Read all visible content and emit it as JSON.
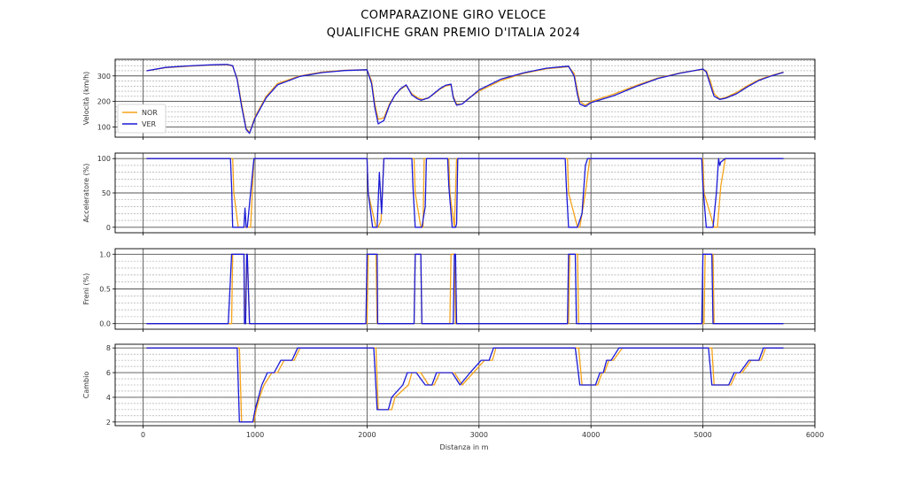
{
  "header": {
    "title_line1": "COMPARAZIONE GIRO VELOCE",
    "title_line2": "QUALIFICHE GRAN PREMIO D'ITALIA 2024"
  },
  "colors": {
    "NOR": "#f5a31a",
    "VER": "#1a1ad6",
    "grid_major": "#555555",
    "grid_minor": "#9a9a9a"
  },
  "chart_data": {
    "type": "line",
    "xlabel": "Distanza in m",
    "xlim": [
      -250,
      6000
    ],
    "xticks": [
      0,
      1000,
      2000,
      3000,
      4000,
      5000,
      6000
    ],
    "legend": {
      "placement": "lower-left",
      "entries": [
        "NOR",
        "VER"
      ]
    },
    "grid": true,
    "panels": [
      {
        "id": "speed",
        "ylabel": "Velocità (km/h)",
        "ylim": [
          60,
          365
        ],
        "yticks": [
          100,
          200,
          300
        ],
        "series": [
          {
            "name": "NOR",
            "x": [
              30,
              200,
              400,
              600,
              750,
              800,
              840,
              880,
              920,
              950,
              1000,
              1100,
              1200,
              1400,
              1600,
              1800,
              2000,
              2040,
              2070,
              2100,
              2150,
              2200,
              2250,
              2300,
              2350,
              2400,
              2450,
              2480,
              2500,
              2550,
              2600,
              2650,
              2700,
              2750,
              2770,
              2800,
              2850,
              2900,
              3000,
              3200,
              3400,
              3600,
              3800,
              3850,
              3880,
              3900,
              3950,
              4000,
              4200,
              4400,
              4600,
              4800,
              5000,
              5030,
              5070,
              5100,
              5150,
              5200,
              5300,
              5400,
              5500,
              5600,
              5720
            ],
            "y": [
              320,
              332,
              338,
              342,
              344,
              338,
              290,
              190,
              95,
              78,
              140,
              220,
              270,
              300,
              315,
              322,
              324,
              280,
              190,
              130,
              135,
              190,
              225,
              248,
              262,
              230,
              215,
              210,
              208,
              215,
              230,
              248,
              260,
              265,
              220,
              190,
              190,
              210,
              240,
              283,
              310,
              328,
              336,
              310,
              240,
              200,
              185,
              200,
              228,
              262,
              292,
              312,
              326,
              320,
              275,
              230,
              210,
              215,
              235,
              262,
              285,
              300,
              315
            ]
          },
          {
            "name": "VER",
            "x": [
              30,
              200,
              400,
              600,
              750,
              800,
              840,
              880,
              920,
              950,
              1000,
              1100,
              1200,
              1400,
              1600,
              1800,
              2000,
              2040,
              2070,
              2100,
              2150,
              2200,
              2250,
              2300,
              2350,
              2400,
              2450,
              2480,
              2500,
              2550,
              2600,
              2650,
              2700,
              2750,
              2770,
              2800,
              2850,
              2900,
              3000,
              3200,
              3400,
              3600,
              3800,
              3850,
              3880,
              3900,
              3950,
              4000,
              4200,
              4400,
              4600,
              4800,
              5000,
              5030,
              5070,
              5100,
              5150,
              5200,
              5300,
              5400,
              5500,
              5600,
              5720
            ],
            "y": [
              320,
              333,
              339,
              343,
              345,
              340,
              285,
              180,
              90,
              75,
              135,
              215,
              265,
              298,
              313,
              321,
              324,
              270,
              175,
              112,
              125,
              185,
              225,
              250,
              265,
              225,
              210,
              205,
              207,
              214,
              232,
              250,
              263,
              268,
              215,
              185,
              190,
              208,
              245,
              288,
              312,
              330,
              338,
              300,
              225,
              190,
              180,
              195,
              222,
              258,
              290,
              311,
              327,
              315,
              260,
              220,
              208,
              212,
              230,
              258,
              282,
              298,
              314
            ]
          }
        ]
      },
      {
        "id": "throttle",
        "ylabel": "Acceleratore (%)",
        "ylim": [
          -8,
          108
        ],
        "yticks": [
          0,
          50,
          100
        ],
        "series": [
          {
            "name": "NOR",
            "x": [
              30,
              800,
              810,
              850,
              880,
              960,
              990,
              2000,
              2010,
              2080,
              2100,
              2125,
              2150,
              2420,
              2430,
              2480,
              2500,
              2510,
              2730,
              2740,
              2780,
              2800,
              3790,
              3800,
              3880,
              3900,
              3950,
              3990,
              5000,
              5010,
              5100,
              5130,
              5160,
              5200,
              5720
            ],
            "y": [
              100,
              100,
              50,
              0,
              0,
              0,
              100,
              100,
              50,
              0,
              0,
              10,
              100,
              100,
              50,
              0,
              0,
              100,
              100,
              50,
              0,
              100,
              100,
              50,
              0,
              0,
              50,
              100,
              100,
              50,
              0,
              0,
              60,
              100,
              100
            ]
          },
          {
            "name": "VER",
            "x": [
              30,
              780,
              790,
              800,
              820,
              900,
              910,
              920,
              930,
              960,
              990,
              2000,
              2010,
              2050,
              2090,
              2110,
              2130,
              2150,
              2400,
              2410,
              2430,
              2490,
              2520,
              2530,
              2720,
              2730,
              2760,
              2790,
              2800,
              2810,
              3770,
              3780,
              3800,
              3880,
              3920,
              3950,
              3970,
              4000,
              4990,
              5000,
              5030,
              5090,
              5120,
              5140,
              5150,
              5160,
              5200,
              5720
            ],
            "y": [
              100,
              100,
              60,
              0,
              0,
              0,
              28,
              0,
              0,
              50,
              100,
              100,
              50,
              0,
              0,
              80,
              20,
              100,
              100,
              60,
              0,
              0,
              30,
              100,
              100,
              60,
              0,
              0,
              5,
              100,
              100,
              60,
              0,
              0,
              20,
              90,
              100,
              100,
              100,
              60,
              0,
              0,
              50,
              100,
              90,
              95,
              100,
              100
            ]
          }
        ]
      },
      {
        "id": "brake",
        "ylabel": "Freni (%)",
        "ylim": [
          -0.08,
          1.08
        ],
        "yticks": [
          "0.0",
          "0.5",
          "1.0"
        ],
        "series": [
          {
            "name": "NOR",
            "x": [
              30,
              790,
              800,
              900,
              910,
              930,
              950,
              2000,
              2010,
              2080,
              2090,
              2420,
              2430,
              2480,
              2490,
              2740,
              2750,
              2780,
              2790,
              3800,
              3810,
              3880,
              3890,
              5010,
              5020,
              5090,
              5100,
              5720
            ],
            "y": [
              0,
              0,
              1,
              1,
              0,
              1,
              0,
              0,
              1,
              1,
              0,
              0,
              1,
              1,
              0,
              0,
              1,
              1,
              0,
              0,
              1,
              1,
              0,
              0,
              1,
              1,
              0,
              0
            ]
          },
          {
            "name": "VER",
            "x": [
              30,
              760,
              790,
              900,
              905,
              915,
              925,
              930,
              950,
              1990,
              2000,
              2090,
              2095,
              2420,
              2430,
              2480,
              2490,
              2770,
              2780,
              2790,
              2800,
              3790,
              3800,
              3860,
              3870,
              4990,
              5000,
              5080,
              5090,
              5720
            ],
            "y": [
              0,
              0,
              1,
              1,
              0,
              0,
              1,
              1,
              0,
              0,
              1,
              1,
              0,
              0,
              1,
              1,
              0,
              0,
              1,
              1,
              0,
              0,
              1,
              1,
              0,
              0,
              1,
              1,
              0,
              0
            ]
          }
        ]
      },
      {
        "id": "gear",
        "ylabel": "Cambio",
        "ylim": [
          1.7,
          8.3
        ],
        "yticks": [
          2,
          4,
          6,
          8
        ],
        "series": [
          {
            "name": "NOR",
            "x": [
              30,
              860,
              880,
              990,
              1010,
              1040,
              1080,
              1150,
              1200,
              1260,
              1300,
              1350,
              1400,
              1430,
              2080,
              2100,
              2220,
              2250,
              2370,
              2400,
              2480,
              2550,
              2600,
              2650,
              2780,
              2850,
              2950,
              3050,
              3120,
              3150,
              3200,
              3230,
              3890,
              3920,
              4060,
              4100,
              4120,
              4160,
              4200,
              4280,
              4320,
              4360,
              5080,
              5100,
              5250,
              5300,
              5350,
              5430,
              5520,
              5560,
              5720
            ],
            "y": [
              8,
              8,
              2,
              2,
              3,
              4,
              5,
              6,
              6,
              7,
              7,
              7,
              8,
              8,
              8,
              3,
              3,
              4,
              5,
              6,
              6,
              5,
              5,
              6,
              6,
              5,
              6,
              7,
              7,
              8,
              8,
              8,
              8,
              5,
              5,
              6,
              6,
              7,
              7,
              8,
              8,
              8,
              8,
              5,
              5,
              6,
              6,
              7,
              7,
              8,
              8
            ]
          },
          {
            "name": "VER",
            "x": [
              30,
              840,
              860,
              980,
              1000,
              1030,
              1060,
              1110,
              1170,
              1230,
              1280,
              1330,
              1380,
              1420,
              2060,
              2090,
              2190,
              2220,
              2320,
              2360,
              2440,
              2520,
              2580,
              2620,
              2760,
              2830,
              2920,
              3020,
              3090,
              3130,
              3180,
              3210,
              3860,
              3900,
              4040,
              4080,
              4110,
              4140,
              4180,
              4250,
              4300,
              4340,
              5050,
              5080,
              5230,
              5280,
              5330,
              5410,
              5500,
              5540,
              5720
            ],
            "y": [
              8,
              8,
              2,
              2,
              3,
              4,
              5,
              6,
              6,
              7,
              7,
              7,
              8,
              8,
              8,
              3,
              3,
              4,
              5,
              6,
              6,
              5,
              5,
              6,
              6,
              5,
              6,
              7,
              7,
              8,
              8,
              8,
              8,
              5,
              5,
              6,
              6,
              7,
              7,
              8,
              8,
              8,
              8,
              5,
              5,
              6,
              6,
              7,
              7,
              8,
              8
            ]
          }
        ]
      }
    ]
  }
}
